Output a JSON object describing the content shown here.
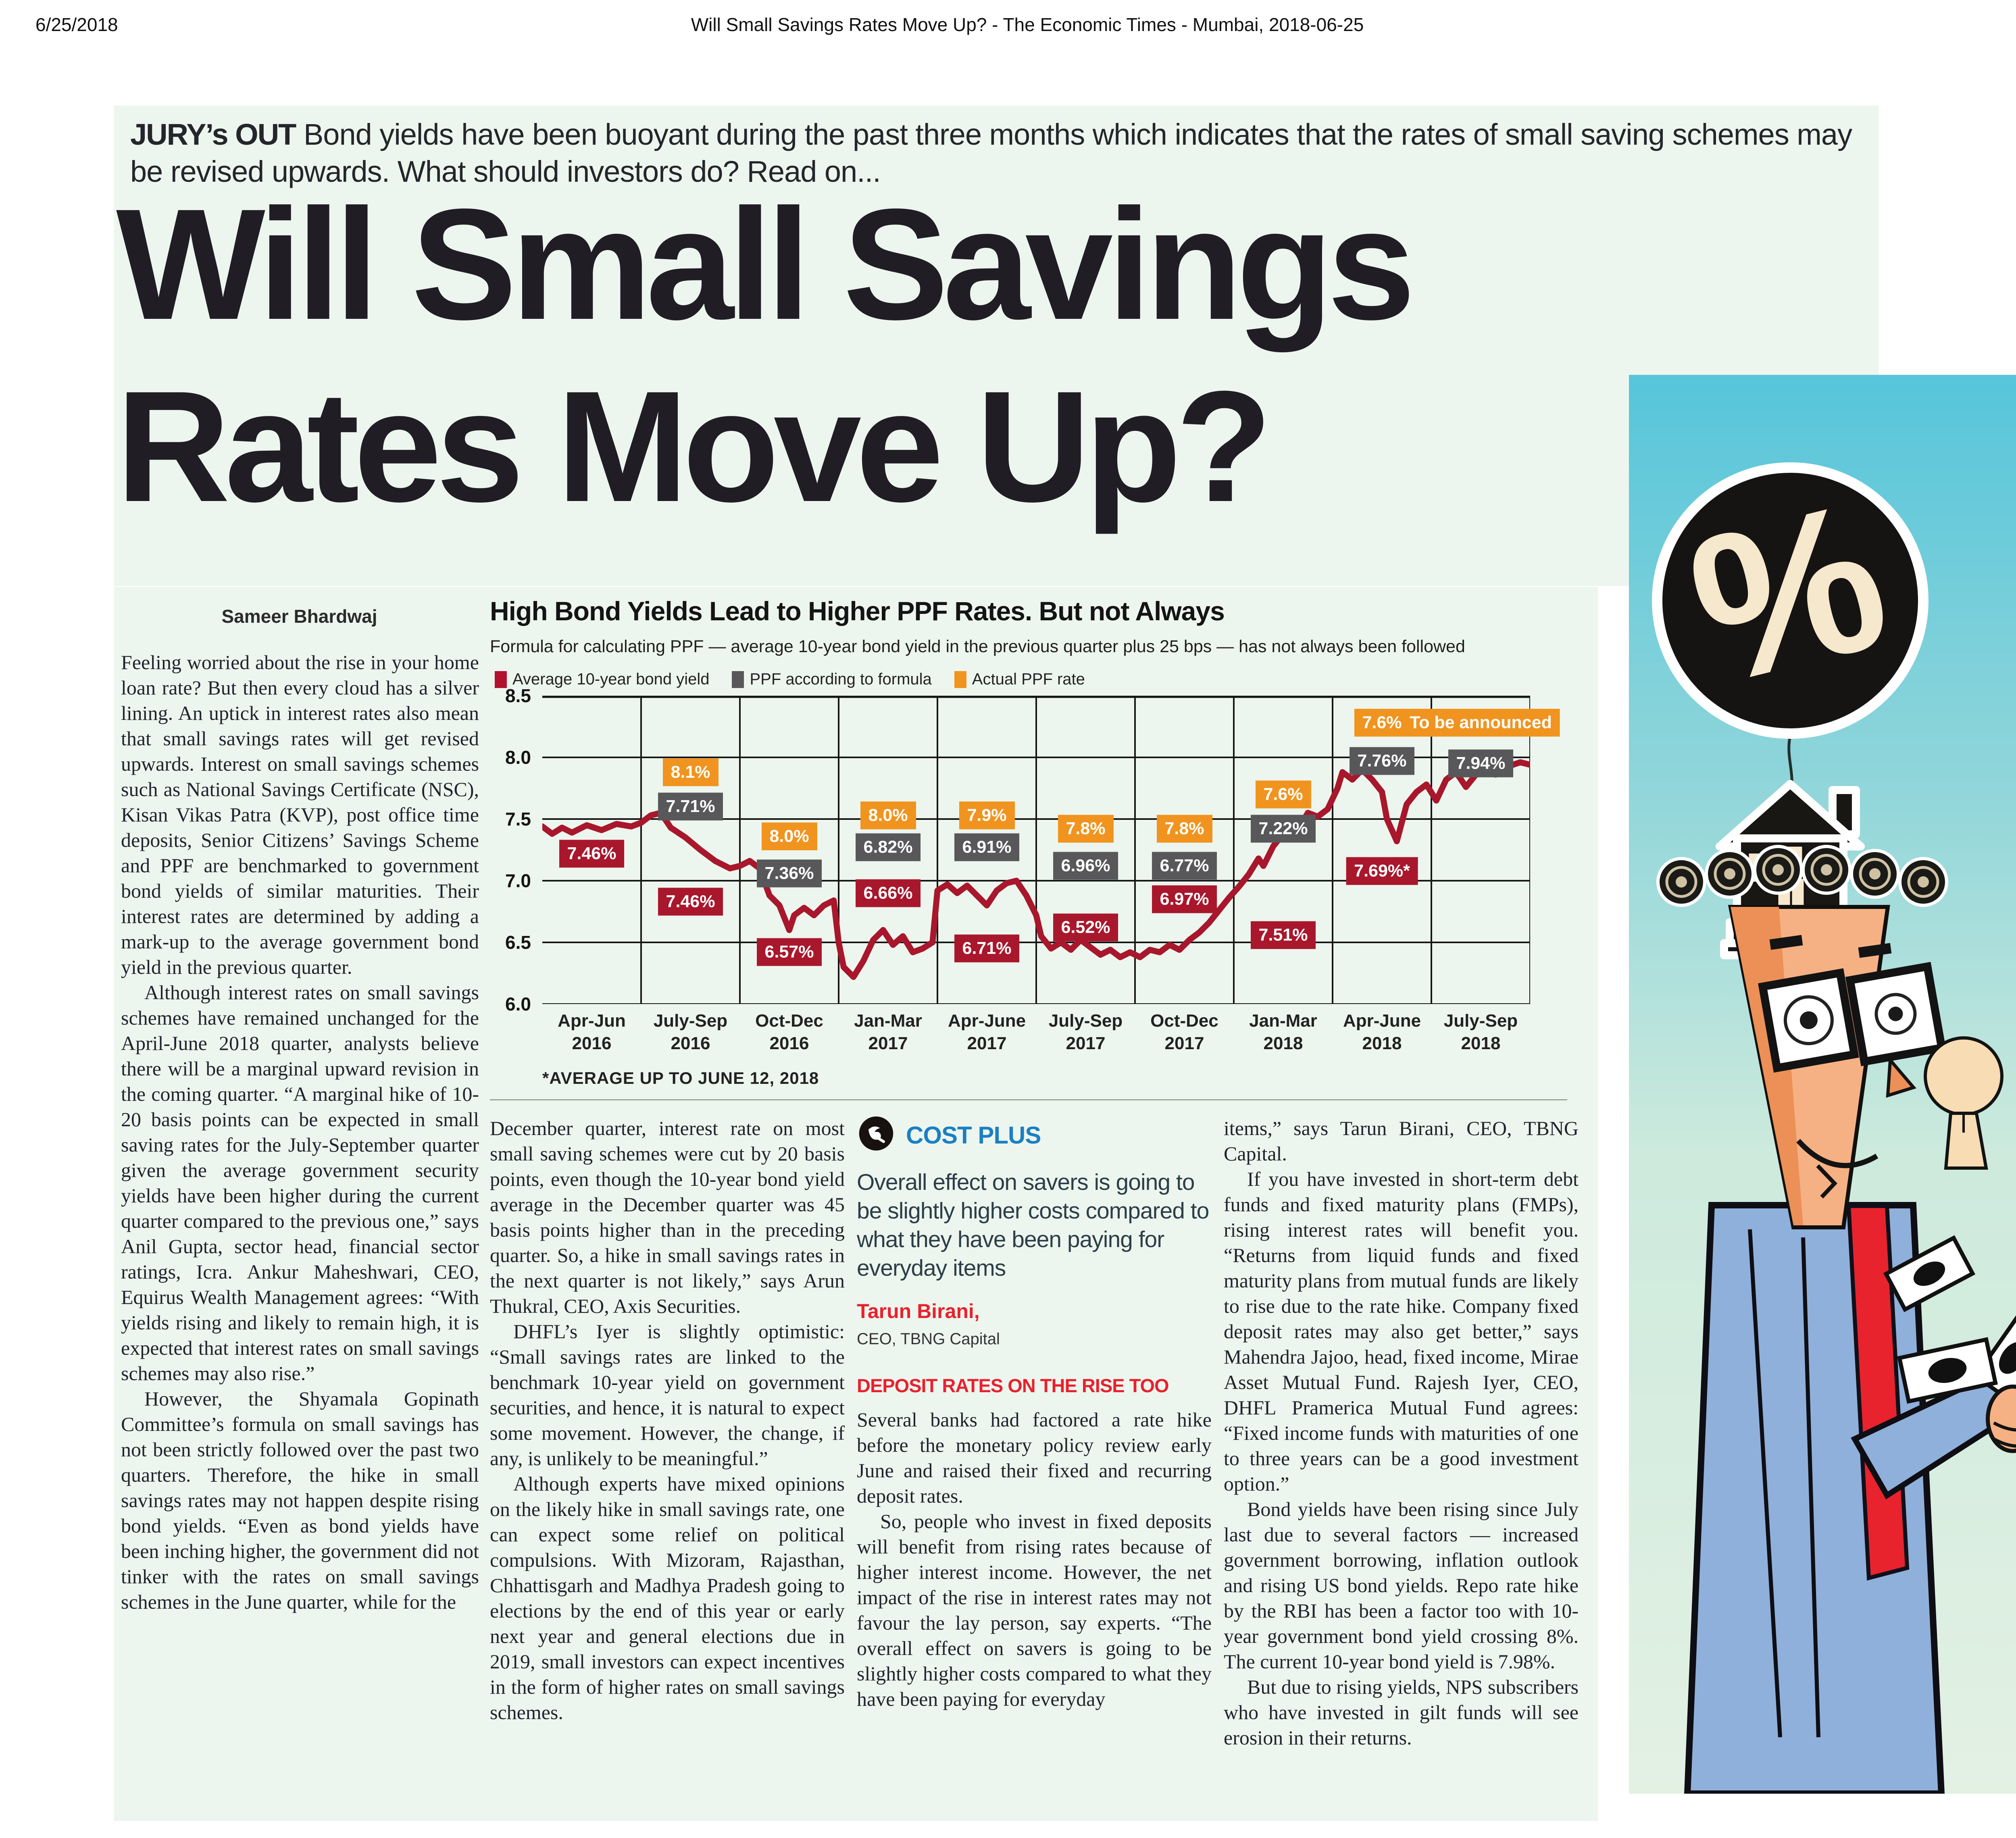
{
  "meta": {
    "date": "6/25/2018",
    "title": "Will Small Savings Rates Move Up? - The Economic Times - Mumbai, 2018-06-25"
  },
  "strap": {
    "label": "JURY’s OUT",
    "text": " Bond yields have been buoyant during the past three months which indicates that the rates of small saving schemes may be revised upwards. What should investors do? Read on..."
  },
  "headline": {
    "line1": "Will Small Savings",
    "line2": "Rates Move Up?"
  },
  "byline": "Sameer Bhardwaj",
  "article": {
    "col1": [
      "Feeling worried about the rise in your home loan rate? But then every cloud has a silver lining. An uptick in interest rates also mean that small savings rates will get revised upwards. Interest on small savings schemes such as National Savings Certificate (NSC), Kisan Vikas Patra (KVP), post office time deposits, Senior Citizens’ Savings Scheme and PPF are benchmarked to government bond yields of similar maturities. Their interest rates are determined by adding a mark-up to the average government bond yield in the previous quarter.",
      "Although interest rates on small savings schemes have remained unchanged for the April-June 2018 quarter, analysts believe there will be a marginal upward revision in the coming quarter. “A marginal hike of 10-20 basis points can be expected in small saving rates for the July-September quarter given the average government security yields have been higher during the current quarter compared to the previous one,” says Anil Gupta, sector head, financial sector ratings, Icra. Ankur Maheshwari, CEO, Equirus Wealth Management agrees: “With yields rising and likely to remain high, it is expected that interest rates on small savings schemes may also rise.”",
      "However, the Shyamala Gopinath Committee’s formula on small savings has not been strictly followed over the past two quarters. Therefore, the hike in small savings rates may not happen despite rising bond yields. “Even as bond yields have been inching higher, the government did not tinker with the rates on small savings schemes in the June quarter, while for the"
    ],
    "col2": [
      "December quarter, interest rate on most small saving schemes were cut by 20 basis points, even though the 10-year bond yield average in the December quarter was 45 basis points higher than in the preceding quarter. So, a hike in small savings rates in the next quarter is not likely,” says Arun Thukral, CEO, Axis Securities.",
      "DHFL’s Iyer is slightly optimistic: “Small savings rates are linked to the benchmark 10-year yield on government securities, and hence, it is natural to expect some movement. However, the change, if any, is unlikely to be meaningful.”",
      "Although experts have mixed opinions on the likely hike in small savings rate, one can expect some relief on political compulsions. With Mizoram, Rajasthan, Chhattisgarh and Madhya Pradesh going to elections by the end of this year or early next year and general elections due in 2019, small investors can expect incentives in the form of higher rates on small savings schemes."
    ],
    "col3": {
      "costplus": {
        "heading": "COST PLUS",
        "quote": "Overall effect on savers is going to be slightly higher costs compared to what they have been paying for everyday items",
        "attribution_name": "Tarun Birani,",
        "attribution_title": "CEO, TBNG Capital"
      },
      "section_heading": "DEPOSIT RATES ON THE RISE TOO",
      "paragraphs": [
        "Several banks had factored a rate hike before the monetary policy review early June and raised their fixed and recurring deposit rates.",
        "So, people who invest in fixed deposits will benefit from rising rates because of higher interest income. However, the net impact of the rise in interest rates may not favour the lay person, say experts. “The overall effect on savers is going to be slightly higher costs compared to what they have been paying for everyday"
      ]
    },
    "col4": [
      "items,” says Tarun Birani, CEO, TBNG Capital.",
      "If you have invested in short-term debt funds and fixed maturity plans (FMPs), rising interest rates will benefit you. “Returns from liquid funds and fixed maturity plans from mutual funds are likely to rise due to the rate hike. Company fixed deposit rates may also get better,” says Mahendra Jajoo, head, fixed income, Mirae Asset Mutual Fund. Rajesh Iyer, CEO, DHFL Pramerica Mutual Fund agrees: “Fixed income funds with maturities of one to three years can be a good investment option.”",
      "Bond yields have been rising since July last due to several factors — increased government borrowing, inflation outlook and rising US bond yields. Repo rate hike by the RBI has been a factor too with 10-year government bond yield crossing 8%. The current 10-year bond yield is 7.98%.",
      "But due to rising yields, NPS subscribers who have invested in gilt funds will see erosion in their returns."
    ]
  },
  "chart_data": {
    "type": "line",
    "title": "High Bond Yields Lead to Higher PPF Rates. But not Always",
    "subtitle": "Formula for calculating PPF — average 10-year bond yield in the previous quarter plus 25 bps — has not always been followed",
    "footnote": "*AVERAGE UP TO JUNE 12, 2018",
    "ylim": [
      6.0,
      8.5
    ],
    "yticks": [
      8.5,
      8.0,
      7.5,
      7.0,
      6.5,
      6.0
    ],
    "grid": "on",
    "legend_position": "top",
    "categories": [
      [
        "Apr-Jun",
        "2016"
      ],
      [
        "July-Sep",
        "2016"
      ],
      [
        "Oct-Dec",
        "2016"
      ],
      [
        "Jan-Mar",
        "2017"
      ],
      [
        "Apr-June",
        "2017"
      ],
      [
        "July-Sep",
        "2017"
      ],
      [
        "Oct-Dec",
        "2017"
      ],
      [
        "Jan-Mar",
        "2018"
      ],
      [
        "Apr-June",
        "2018"
      ],
      [
        "July-Sep",
        "2018"
      ]
    ],
    "legend": [
      {
        "label": "Average 10-year bond yield",
        "color": "#b2122d"
      },
      {
        "label": "PPF according to formula",
        "color": "#58585a"
      },
      {
        "label": "Actual PPF rate",
        "color": "#f0941f"
      }
    ],
    "series": [
      {
        "name": "Average 10-year bond yield",
        "color": "#a8172c",
        "labels": [
          {
            "q": 0,
            "text": "7.46%",
            "y": 7.22
          },
          {
            "q": 1,
            "text": "7.46%",
            "y": 6.83
          },
          {
            "q": 2,
            "text": "6.57%",
            "y": 6.42
          },
          {
            "q": 3,
            "text": "6.66%",
            "y": 6.9
          },
          {
            "q": 4,
            "text": "6.71%",
            "y": 6.45
          },
          {
            "q": 5,
            "text": "6.52%",
            "y": 6.62
          },
          {
            "q": 6,
            "text": "6.97%",
            "y": 6.85
          },
          {
            "q": 7,
            "text": "7.51%",
            "y": 6.56
          },
          {
            "q": 8,
            "text": "7.69%*",
            "y": 7.08
          }
        ]
      },
      {
        "name": "PPF according to formula",
        "color": "#58585a",
        "labels": [
          {
            "q": 1,
            "text": "7.71%",
            "y": 7.6
          },
          {
            "q": 2,
            "text": "7.36%",
            "y": 7.06
          },
          {
            "q": 3,
            "text": "6.82%",
            "y": 7.27
          },
          {
            "q": 4,
            "text": "6.91%",
            "y": 7.27
          },
          {
            "q": 5,
            "text": "6.96%",
            "y": 7.12
          },
          {
            "q": 6,
            "text": "6.77%",
            "y": 7.12
          },
          {
            "q": 7,
            "text": "7.22%",
            "y": 7.42
          },
          {
            "q": 8,
            "text": "7.76%",
            "y": 7.97
          },
          {
            "q": 9,
            "text": "7.94%",
            "y": 7.95
          }
        ]
      },
      {
        "name": "Actual PPF rate",
        "color": "#f0941f",
        "labels": [
          {
            "q": 1,
            "text": "8.1%",
            "y": 7.88
          },
          {
            "q": 2,
            "text": "8.0%",
            "y": 7.36
          },
          {
            "q": 3,
            "text": "8.0%",
            "y": 7.53
          },
          {
            "q": 4,
            "text": "7.9%",
            "y": 7.53
          },
          {
            "q": 5,
            "text": "7.8%",
            "y": 7.42
          },
          {
            "q": 6,
            "text": "7.8%",
            "y": 7.42
          },
          {
            "q": 7,
            "text": "7.6%",
            "y": 7.7
          },
          {
            "q": 8,
            "text": "7.6%",
            "y": 8.28
          },
          {
            "q": 9,
            "text": "To be announced",
            "y": 8.28
          }
        ]
      }
    ],
    "line_points": [
      [
        0,
        7.44
      ],
      [
        0.1,
        7.38
      ],
      [
        0.2,
        7.43
      ],
      [
        0.3,
        7.39
      ],
      [
        0.45,
        7.45
      ],
      [
        0.6,
        7.41
      ],
      [
        0.75,
        7.46
      ],
      [
        0.9,
        7.44
      ],
      [
        1.0,
        7.47
      ],
      [
        1.1,
        7.53
      ],
      [
        1.2,
        7.55
      ],
      [
        1.3,
        7.43
      ],
      [
        1.45,
        7.35
      ],
      [
        1.6,
        7.25
      ],
      [
        1.75,
        7.16
      ],
      [
        1.9,
        7.1
      ],
      [
        2.0,
        7.12
      ],
      [
        2.1,
        7.16
      ],
      [
        2.2,
        7.1
      ],
      [
        2.3,
        6.88
      ],
      [
        2.4,
        6.8
      ],
      [
        2.5,
        6.6
      ],
      [
        2.55,
        6.72
      ],
      [
        2.65,
        6.78
      ],
      [
        2.75,
        6.72
      ],
      [
        2.85,
        6.8
      ],
      [
        2.95,
        6.84
      ],
      [
        3.0,
        6.5
      ],
      [
        3.05,
        6.3
      ],
      [
        3.15,
        6.22
      ],
      [
        3.25,
        6.35
      ],
      [
        3.35,
        6.52
      ],
      [
        3.45,
        6.6
      ],
      [
        3.55,
        6.48
      ],
      [
        3.65,
        6.55
      ],
      [
        3.75,
        6.42
      ],
      [
        3.85,
        6.45
      ],
      [
        3.95,
        6.5
      ],
      [
        4.0,
        6.92
      ],
      [
        4.1,
        6.97
      ],
      [
        4.2,
        6.9
      ],
      [
        4.3,
        6.96
      ],
      [
        4.4,
        6.88
      ],
      [
        4.5,
        6.8
      ],
      [
        4.6,
        6.92
      ],
      [
        4.7,
        6.98
      ],
      [
        4.8,
        7.0
      ],
      [
        4.9,
        6.88
      ],
      [
        5.0,
        6.72
      ],
      [
        5.05,
        6.55
      ],
      [
        5.15,
        6.45
      ],
      [
        5.25,
        6.5
      ],
      [
        5.35,
        6.44
      ],
      [
        5.45,
        6.52
      ],
      [
        5.55,
        6.46
      ],
      [
        5.65,
        6.4
      ],
      [
        5.75,
        6.44
      ],
      [
        5.85,
        6.38
      ],
      [
        5.95,
        6.42
      ],
      [
        6.05,
        6.38
      ],
      [
        6.15,
        6.44
      ],
      [
        6.25,
        6.42
      ],
      [
        6.35,
        6.48
      ],
      [
        6.45,
        6.44
      ],
      [
        6.55,
        6.52
      ],
      [
        6.65,
        6.58
      ],
      [
        6.75,
        6.66
      ],
      [
        6.85,
        6.76
      ],
      [
        6.95,
        6.86
      ],
      [
        7.05,
        6.95
      ],
      [
        7.15,
        7.05
      ],
      [
        7.25,
        7.18
      ],
      [
        7.3,
        7.12
      ],
      [
        7.4,
        7.28
      ],
      [
        7.5,
        7.38
      ],
      [
        7.6,
        7.48
      ],
      [
        7.65,
        7.42
      ],
      [
        7.75,
        7.55
      ],
      [
        7.85,
        7.52
      ],
      [
        7.95,
        7.58
      ],
      [
        8.05,
        7.75
      ],
      [
        8.1,
        7.88
      ],
      [
        8.2,
        7.82
      ],
      [
        8.3,
        7.9
      ],
      [
        8.4,
        7.82
      ],
      [
        8.5,
        7.72
      ],
      [
        8.55,
        7.5
      ],
      [
        8.65,
        7.32
      ],
      [
        8.75,
        7.62
      ],
      [
        8.85,
        7.72
      ],
      [
        8.95,
        7.78
      ],
      [
        9.05,
        7.65
      ],
      [
        9.15,
        7.82
      ],
      [
        9.25,
        7.88
      ],
      [
        9.35,
        7.76
      ],
      [
        9.45,
        7.86
      ],
      [
        9.55,
        7.92
      ],
      [
        9.65,
        7.86
      ],
      [
        9.75,
        7.92
      ],
      [
        9.9,
        7.96
      ],
      [
        10,
        7.94
      ]
    ]
  },
  "colors": {
    "headline": "#201d24",
    "section_red": "#e8212e",
    "costplus_blue": "#1b7fc3",
    "page_tint": "#edf6ee"
  }
}
